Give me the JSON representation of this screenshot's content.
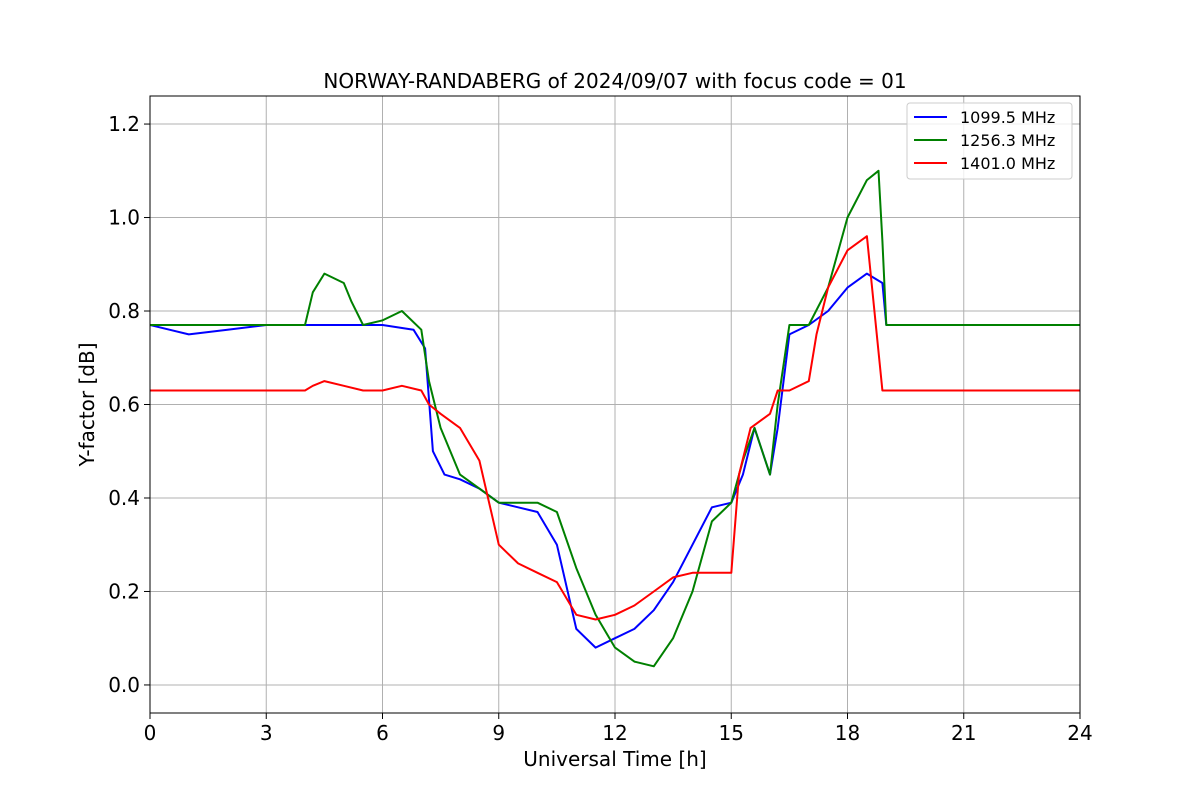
{
  "chart_data": {
    "type": "line",
    "title": "NORWAY-RANDABERG of 2024/09/07 with focus code = 01",
    "xlabel": "Universal Time [h]",
    "ylabel": "Y-factor [dB]",
    "xlim": [
      0,
      24
    ],
    "ylim": [
      -0.06,
      1.26
    ],
    "xticks": [
      0,
      3,
      6,
      9,
      12,
      15,
      18,
      21,
      24
    ],
    "yticks": [
      0.0,
      0.2,
      0.4,
      0.6,
      0.8,
      1.0,
      1.2
    ],
    "xtick_labels": [
      "0",
      "3",
      "6",
      "9",
      "12",
      "15",
      "18",
      "21",
      "24"
    ],
    "ytick_labels": [
      "0.0",
      "0.2",
      "0.4",
      "0.6",
      "0.8",
      "1.0",
      "1.2"
    ],
    "grid": true,
    "legend_position": "top-right",
    "series": [
      {
        "name": "1099.5 MHz",
        "color": "#0000ff",
        "x": [
          0,
          0.5,
          1,
          2,
          3,
          4,
          5,
          6,
          6.8,
          7.1,
          7.3,
          7.6,
          8,
          8.5,
          9,
          9.5,
          10,
          10.5,
          11,
          11.5,
          12,
          12.5,
          13,
          13.5,
          14,
          14.5,
          15,
          15.3,
          15.6,
          16,
          16.2,
          16.5,
          17,
          17.5,
          18,
          18.5,
          18.9,
          19,
          20,
          21,
          22,
          23,
          24
        ],
        "y": [
          0.77,
          0.76,
          0.75,
          0.76,
          0.77,
          0.77,
          0.77,
          0.77,
          0.76,
          0.72,
          0.5,
          0.45,
          0.44,
          0.42,
          0.39,
          0.38,
          0.37,
          0.3,
          0.12,
          0.08,
          0.1,
          0.12,
          0.16,
          0.22,
          0.3,
          0.38,
          0.39,
          0.45,
          0.55,
          0.45,
          0.55,
          0.75,
          0.77,
          0.8,
          0.85,
          0.88,
          0.86,
          0.77,
          0.77,
          0.77,
          0.77,
          0.77,
          0.77
        ]
      },
      {
        "name": "1256.3 MHz",
        "color": "#008000",
        "x": [
          0,
          1,
          2,
          3,
          4,
          4.2,
          4.5,
          5,
          5.2,
          5.5,
          6,
          6.5,
          7,
          7.2,
          7.5,
          8,
          8.5,
          9,
          9.5,
          10,
          10.5,
          11,
          11.5,
          12,
          12.5,
          13,
          13.5,
          14,
          14.5,
          15,
          15.3,
          15.6,
          16,
          16.2,
          16.5,
          17,
          17.5,
          18,
          18.5,
          18.8,
          18.9,
          19,
          20,
          21,
          22,
          23,
          24
        ],
        "y": [
          0.77,
          0.77,
          0.77,
          0.77,
          0.77,
          0.84,
          0.88,
          0.86,
          0.82,
          0.77,
          0.78,
          0.8,
          0.76,
          0.65,
          0.55,
          0.45,
          0.42,
          0.39,
          0.39,
          0.39,
          0.37,
          0.25,
          0.15,
          0.08,
          0.05,
          0.04,
          0.1,
          0.2,
          0.35,
          0.39,
          0.48,
          0.55,
          0.45,
          0.6,
          0.77,
          0.77,
          0.85,
          1.0,
          1.08,
          1.1,
          0.95,
          0.77,
          0.77,
          0.77,
          0.77,
          0.77,
          0.77
        ]
      },
      {
        "name": "1401.0 MHz",
        "color": "#ff0000",
        "x": [
          0,
          1,
          2,
          3,
          4,
          4.2,
          4.5,
          5,
          5.5,
          6,
          6.5,
          7,
          7.2,
          7.5,
          8,
          8.5,
          9,
          9.5,
          10,
          10.5,
          11,
          11.5,
          12,
          12.5,
          13,
          13.5,
          14,
          14.5,
          15,
          15.2,
          15.5,
          16,
          16.2,
          16.5,
          17,
          17.2,
          17.5,
          18,
          18.5,
          18.9,
          19,
          20,
          21,
          22,
          23,
          24
        ],
        "y": [
          0.63,
          0.63,
          0.63,
          0.63,
          0.63,
          0.64,
          0.65,
          0.64,
          0.63,
          0.63,
          0.64,
          0.63,
          0.6,
          0.58,
          0.55,
          0.48,
          0.3,
          0.26,
          0.24,
          0.22,
          0.15,
          0.14,
          0.15,
          0.17,
          0.2,
          0.23,
          0.24,
          0.24,
          0.24,
          0.45,
          0.55,
          0.58,
          0.63,
          0.63,
          0.65,
          0.75,
          0.85,
          0.93,
          0.96,
          0.63,
          0.63,
          0.63,
          0.63,
          0.63,
          0.63,
          0.63
        ]
      }
    ]
  }
}
